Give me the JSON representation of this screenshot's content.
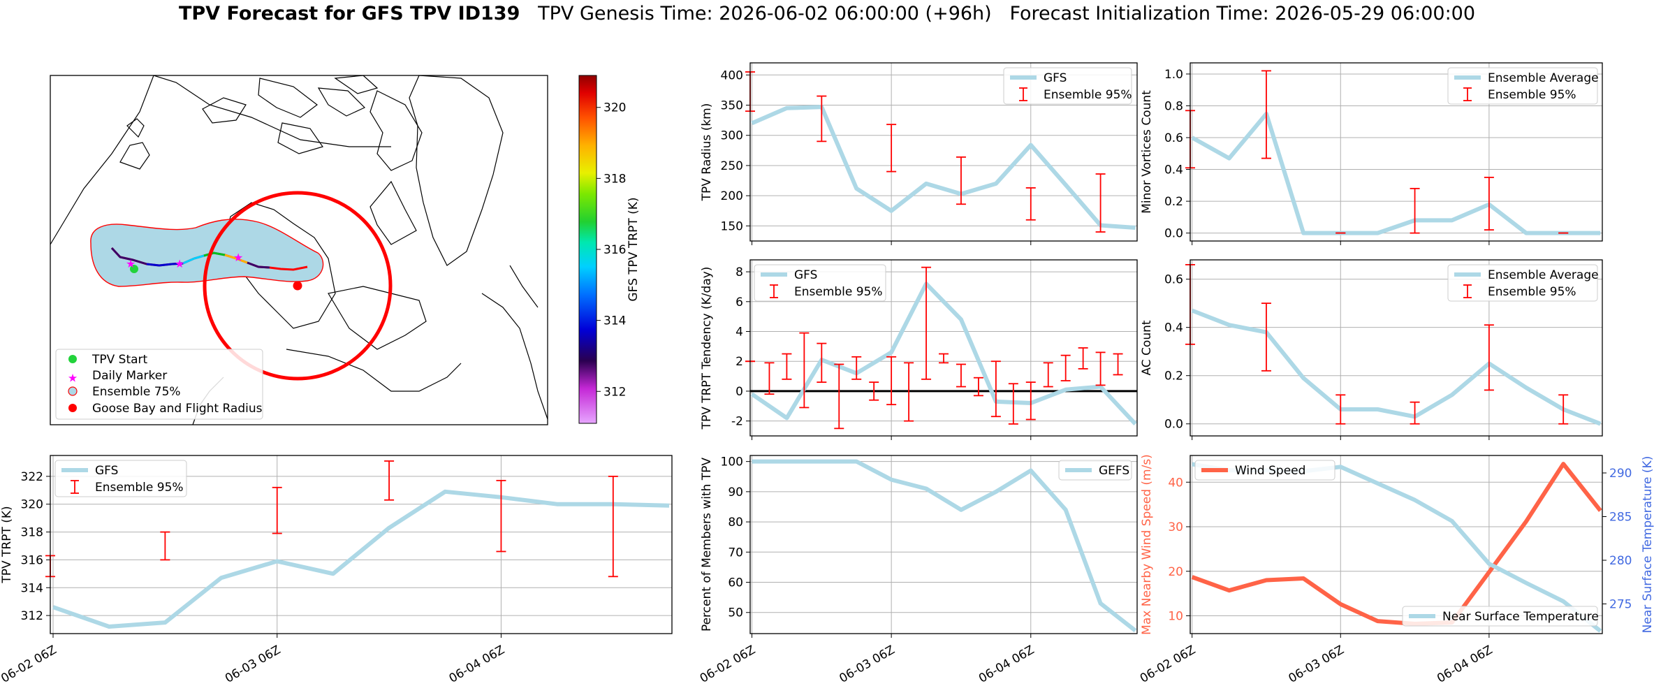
{
  "title": {
    "bold": "TPV Forecast for GFS TPV ID139",
    "genesis": "TPV Genesis Time: 2026-06-02 06:00:00 (+96h)",
    "init": "Forecast Initialization Time: 2026-05-29 06:00:00"
  },
  "colors": {
    "gfs_line": "#add8e6",
    "errorbar": "#ff0000",
    "wind": "#ff6347",
    "temp_axis": "#4169e1",
    "goose": "#ff0000"
  },
  "chart_data": [
    {
      "id": "map",
      "type": "map",
      "colorbar": {
        "label": "GFS TPV TRPT (K)",
        "ticks": [
          312,
          314,
          316,
          318,
          320
        ],
        "range": [
          311.1,
          320.9
        ],
        "colormap": "gist_ncar-like"
      },
      "legend": [
        "TPV Start",
        "Daily Marker",
        "Ensemble 75%",
        "Goose Bay and Flight Radius"
      ]
    },
    {
      "id": "radius",
      "type": "line",
      "ylabel": "TPV Radius (km)",
      "ylim": [
        125,
        420
      ],
      "yticks": [
        150,
        200,
        250,
        300,
        350,
        400
      ],
      "x": [
        0,
        6,
        12,
        18,
        24,
        30,
        36,
        42,
        48,
        54,
        60,
        66
      ],
      "series": [
        {
          "name": "GFS",
          "values": [
            320,
            345,
            347,
            212,
            175,
            220,
            203,
            220,
            284,
            218,
            151,
            147
          ]
        }
      ],
      "errorbars": {
        "name": "Ensemble 95%",
        "x": [
          -0.3,
          12,
          24,
          36,
          48,
          60
        ],
        "low": [
          340,
          290,
          240,
          186,
          160,
          140
        ],
        "high": [
          405,
          365,
          318,
          264,
          213,
          236
        ]
      },
      "legend_position": "top-right"
    },
    {
      "id": "minor",
      "type": "line",
      "ylabel": "Minor Vortices Count",
      "ylim": [
        -0.05,
        1.07
      ],
      "yticks": [
        0.0,
        0.2,
        0.4,
        0.6,
        0.8,
        1.0
      ],
      "x": [
        0,
        6,
        12,
        18,
        24,
        30,
        36,
        42,
        48,
        54,
        60,
        66
      ],
      "series": [
        {
          "name": "Ensemble Average",
          "values": [
            0.6,
            0.47,
            0.75,
            0.0,
            0.0,
            0.0,
            0.08,
            0.08,
            0.18,
            0.0,
            0.0,
            0.0
          ]
        }
      ],
      "errorbars": {
        "name": "Ensemble 95%",
        "x": [
          -0.3,
          12,
          24,
          36,
          48,
          60
        ],
        "low": [
          0.41,
          0.47,
          0.0,
          0.0,
          0.02,
          0.0
        ],
        "high": [
          0.77,
          1.02,
          0.0,
          0.28,
          0.35,
          0.0
        ]
      },
      "legend_position": "top-right"
    },
    {
      "id": "tendency",
      "type": "line",
      "ylabel": "TPV TRPT Tendency (K/day)",
      "ylim": [
        -3,
        8.8
      ],
      "yticks": [
        -2,
        0,
        2,
        4,
        6,
        8
      ],
      "x": [
        0,
        6,
        12,
        18,
        24,
        30,
        36,
        42,
        48,
        54,
        60,
        66
      ],
      "series": [
        {
          "name": "GFS",
          "values": [
            -0.2,
            -1.8,
            2.1,
            1.2,
            2.6,
            7.2,
            4.8,
            -0.7,
            -0.8,
            0.1,
            0.3,
            -2.2
          ]
        }
      ],
      "errorbars": {
        "name": "Ensemble 95%",
        "x": [
          -0.3,
          3,
          6,
          9,
          12,
          15,
          18,
          21,
          24,
          27,
          30,
          33,
          36,
          39,
          42,
          45,
          48,
          51,
          54,
          57,
          60,
          63
        ],
        "low": [
          2,
          -0.2,
          0.8,
          -1.1,
          0.6,
          -2.5,
          0.8,
          -0.6,
          -0.9,
          -2,
          0.8,
          1.9,
          0.3,
          -0.3,
          -1.7,
          -2.2,
          -1.9,
          0.3,
          0.7,
          1.5,
          0.4,
          1.1
        ],
        "high": [
          2,
          1.9,
          2.5,
          3.9,
          3.2,
          1.8,
          2.3,
          0.6,
          2.3,
          1.9,
          8.3,
          2.5,
          1.8,
          0.9,
          2.0,
          0.5,
          0.6,
          1.9,
          2.4,
          2.9,
          2.6,
          2.5
        ]
      },
      "zero_line": true,
      "legend_position": "top-left"
    },
    {
      "id": "ac",
      "type": "line",
      "ylabel": "AC Count",
      "ylim": [
        -0.05,
        0.68
      ],
      "yticks": [
        0.0,
        0.2,
        0.4,
        0.6
      ],
      "x": [
        0,
        6,
        12,
        18,
        24,
        30,
        36,
        42,
        48,
        54,
        60,
        66
      ],
      "series": [
        {
          "name": "Ensemble Average",
          "values": [
            0.47,
            0.41,
            0.38,
            0.19,
            0.06,
            0.06,
            0.03,
            0.12,
            0.25,
            0.15,
            0.06,
            0.0
          ]
        }
      ],
      "errorbars": {
        "name": "Ensemble 95%",
        "x": [
          -0.3,
          12,
          24,
          36,
          48,
          60
        ],
        "low": [
          0.33,
          0.22,
          0.0,
          0.0,
          0.14,
          0.0
        ],
        "high": [
          0.66,
          0.5,
          0.12,
          0.09,
          0.41,
          0.12
        ]
      },
      "legend_position": "top-right"
    },
    {
      "id": "trpt",
      "type": "line",
      "ylabel": "TPV TRPT (K)",
      "ylim": [
        310.7,
        323.5
      ],
      "yticks": [
        312,
        314,
        316,
        318,
        320,
        322
      ],
      "x": [
        0,
        6,
        12,
        18,
        24,
        30,
        36,
        42,
        48,
        54,
        60,
        66
      ],
      "xticks": [
        {
          "x": 0,
          "label": "06-02 06Z"
        },
        {
          "x": 24,
          "label": "06-03 06Z"
        },
        {
          "x": 48,
          "label": "06-04 06Z"
        }
      ],
      "series": [
        {
          "name": "GFS",
          "values": [
            312.6,
            311.2,
            311.5,
            314.7,
            315.9,
            315.0,
            318.3,
            320.9,
            320.5,
            320.0,
            320.0,
            319.9
          ]
        }
      ],
      "errorbars": {
        "name": "Ensemble 95%",
        "x": [
          -0.3,
          12,
          24,
          36,
          48,
          60
        ],
        "low": [
          314.8,
          316.0,
          317.9,
          320.3,
          316.6,
          314.8
        ],
        "high": [
          316.3,
          318.0,
          321.2,
          323.1,
          321.7,
          322.0
        ]
      },
      "legend_position": "top-left"
    },
    {
      "id": "percent",
      "type": "line",
      "ylabel": "Percent of Members with TPV",
      "ylim": [
        43,
        102
      ],
      "yticks": [
        50,
        60,
        70,
        80,
        90,
        100
      ],
      "x": [
        0,
        6,
        12,
        18,
        24,
        30,
        36,
        42,
        48,
        54,
        60,
        66
      ],
      "xticks": [
        {
          "x": 0,
          "label": "06-02 06Z"
        },
        {
          "x": 24,
          "label": "06-03 06Z"
        },
        {
          "x": 48,
          "label": "06-04 06Z"
        }
      ],
      "series": [
        {
          "name": "GEFS",
          "values": [
            100,
            100,
            100,
            100,
            94,
            91,
            84,
            90,
            97,
            84,
            53,
            44
          ]
        }
      ],
      "legend_position": "top-right"
    },
    {
      "id": "wind_temp",
      "type": "line",
      "ylabel": "Max Nearby Wind Speed (m/s)",
      "ylabel_right": "Near Surface Temperature (K)",
      "ylim": [
        6,
        46
      ],
      "yticks": [
        10,
        20,
        30,
        40
      ],
      "ylim_right": [
        271.6,
        292
      ],
      "yticks_right": [
        275,
        280,
        285,
        290
      ],
      "x": [
        0,
        6,
        12,
        18,
        24,
        30,
        36,
        42,
        48,
        54,
        60,
        66
      ],
      "xticks": [
        {
          "x": 0,
          "label": "06-02 06Z"
        },
        {
          "x": 24,
          "label": "06-03 06Z"
        },
        {
          "x": 48,
          "label": "06-04 06Z"
        }
      ],
      "series": [
        {
          "name": "Wind Speed",
          "axis": "left",
          "values": [
            18.7,
            15.7,
            18.0,
            18.4,
            12.6,
            8.8,
            8.2,
            8.5,
            19.8,
            31.2,
            44.1,
            33.6
          ]
        },
        {
          "name": "Near Surface Temperature",
          "axis": "right",
          "values": [
            291.0,
            290.3,
            290.3,
            290.2,
            290.7,
            288.8,
            286.9,
            284.5,
            279.6,
            277.4,
            275.3,
            271.9
          ]
        }
      ]
    }
  ]
}
